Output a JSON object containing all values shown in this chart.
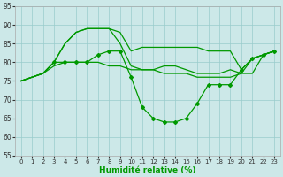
{
  "xlabel": "Humidité relative (%)",
  "bg_color": "#cce8e8",
  "grid_color": "#99cccc",
  "line_color": "#009900",
  "xlim": [
    -0.5,
    23.5
  ],
  "ylim": [
    55,
    95
  ],
  "yticks": [
    55,
    60,
    65,
    70,
    75,
    80,
    85,
    90,
    95
  ],
  "xticks": [
    0,
    1,
    2,
    3,
    4,
    5,
    6,
    7,
    8,
    9,
    10,
    11,
    12,
    13,
    14,
    15,
    16,
    17,
    18,
    19,
    20,
    21,
    22,
    23
  ],
  "line1_x": [
    0,
    1,
    2,
    3,
    4,
    5,
    6,
    7,
    8,
    9,
    10,
    11,
    12,
    13,
    14,
    15,
    16,
    17,
    18,
    19,
    20,
    21,
    22,
    23
  ],
  "line1_y": [
    75,
    76,
    77,
    80,
    85,
    88,
    89,
    89,
    89,
    88,
    83,
    84,
    84,
    84,
    84,
    84,
    84,
    83,
    83,
    83,
    78,
    81,
    82,
    83
  ],
  "line2_x": [
    0,
    1,
    2,
    3,
    4,
    5,
    6,
    7,
    8,
    9,
    10,
    11,
    12,
    13,
    14,
    15,
    16,
    17,
    18,
    19,
    20,
    21,
    22,
    23
  ],
  "line2_y": [
    75,
    76,
    77,
    80,
    85,
    88,
    89,
    89,
    89,
    85,
    79,
    78,
    78,
    79,
    79,
    78,
    77,
    77,
    77,
    78,
    77,
    81,
    82,
    83
  ],
  "line3_x": [
    0,
    1,
    2,
    3,
    4,
    5,
    6,
    7,
    8,
    9,
    10,
    11,
    12,
    13,
    14,
    15,
    16,
    17,
    18,
    19,
    20,
    21,
    22,
    23
  ],
  "line3_y": [
    75,
    76,
    77,
    80,
    80,
    80,
    80,
    82,
    83,
    83,
    76,
    68,
    65,
    64,
    64,
    65,
    69,
    74,
    74,
    74,
    78,
    81,
    82,
    83
  ],
  "line3_marker_x": [
    3,
    4,
    5,
    6,
    7,
    8,
    9,
    10,
    11,
    12,
    13,
    14,
    15,
    16,
    17,
    18,
    19,
    20,
    21,
    22,
    23
  ],
  "line3_marker_y": [
    80,
    80,
    80,
    80,
    82,
    83,
    83,
    76,
    68,
    65,
    64,
    64,
    65,
    69,
    74,
    74,
    74,
    78,
    81,
    82,
    83
  ],
  "line4_x": [
    0,
    1,
    2,
    3,
    4,
    5,
    6,
    7,
    8,
    9,
    10,
    11,
    12,
    13,
    14,
    15,
    16,
    17,
    18,
    19,
    20,
    21,
    22,
    23
  ],
  "line4_y": [
    75,
    76,
    77,
    79,
    80,
    80,
    80,
    80,
    79,
    79,
    78,
    78,
    78,
    77,
    77,
    77,
    76,
    76,
    76,
    76,
    77,
    77,
    82,
    83
  ]
}
